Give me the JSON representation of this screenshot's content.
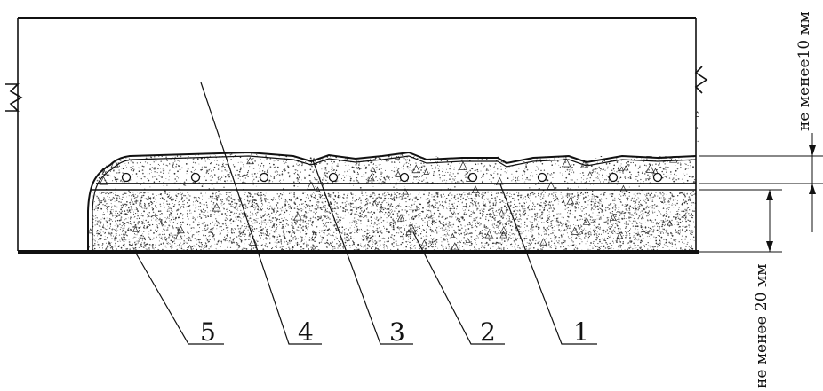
{
  "callouts": [
    {
      "id": "1",
      "label": "1"
    },
    {
      "id": "2",
      "label": "2"
    },
    {
      "id": "3",
      "label": "3"
    },
    {
      "id": "4",
      "label": "4"
    },
    {
      "id": "5",
      "label": "5"
    }
  ],
  "dimensions": {
    "top_cover": "не менее10 мм",
    "bottom_layer": "не менее 20 мм"
  },
  "colors": {
    "ink": "#111111",
    "background": "#ffffff"
  }
}
